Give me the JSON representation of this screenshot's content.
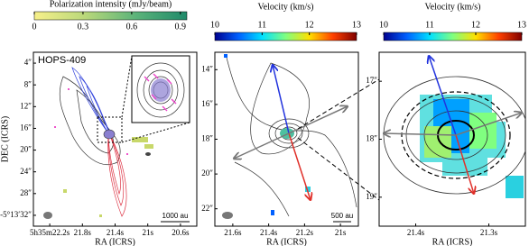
{
  "panels": [
    {
      "colorbar": {
        "label": "Polarization intensity (mJy/beam)",
        "lim": [
          0,
          0.94
        ],
        "ticks": [
          0,
          0.3,
          0.6,
          0.9
        ],
        "colors": [
          "#f7f08a",
          "#b9d87a",
          "#5bb37a",
          "#1f8a6a"
        ]
      },
      "annotation": "HOPS-409",
      "scalebar": "1000 au",
      "xlabel": "RA (ICRS)",
      "ylabel": "DEC (ICRS)",
      "xticks": [
        "5h35m22.2s",
        "21.8s",
        "21.4s",
        "21s",
        "20.6s"
      ],
      "yticks": [
        "4″",
        "8″",
        "12″",
        "16″",
        "20″",
        "24″",
        "28″",
        "-5°13′32″"
      ]
    },
    {
      "colorbar": {
        "label": "Velocity (km/s)",
        "lim": [
          10,
          13
        ],
        "ticks": [
          10,
          11,
          12,
          13
        ],
        "colors": [
          "#00008f",
          "#0060ff",
          "#00e0ff",
          "#80ff80",
          "#ffe000",
          "#ff4000",
          "#800000"
        ]
      },
      "scalebar": "500 au",
      "xlabel": "RA (ICRS)",
      "xticks": [
        "21.6s",
        "21.4s",
        "21.2s",
        "21s"
      ],
      "yticks": [
        "14″",
        "16″",
        "18″",
        "20″",
        "22″"
      ]
    },
    {
      "colorbar": {
        "label": "Velocity (km/s)",
        "lim": [
          10,
          13
        ],
        "ticks": [
          10,
          11,
          12,
          13
        ],
        "colors": [
          "#00008f",
          "#0060ff",
          "#00e0ff",
          "#80ff80",
          "#ffe000",
          "#ff4000",
          "#800000"
        ]
      },
      "xlabel": "RA (ICRS)",
      "xticks": [
        "21.4s",
        "21.3s"
      ],
      "yticks": [
        "17″",
        "18″",
        "19″"
      ]
    }
  ]
}
